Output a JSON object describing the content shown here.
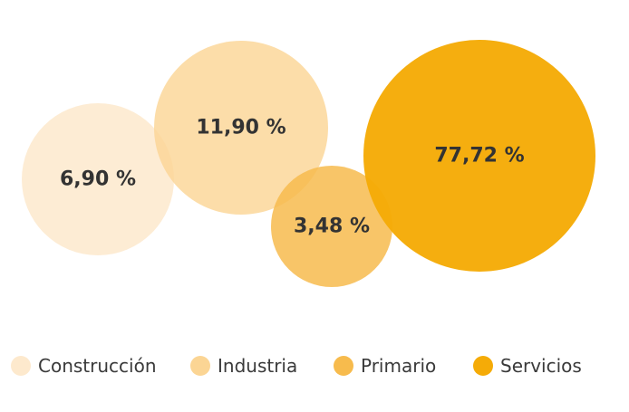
{
  "chart_data": {
    "type": "bubble",
    "title": "",
    "legend_position": "bottom",
    "series": [
      {
        "name": "Construcción",
        "value": 6.9,
        "label": "6,90 %",
        "color": "#fde9cd"
      },
      {
        "name": "Industria",
        "value": 11.9,
        "label": "11,90 %",
        "color": "#fbd594"
      },
      {
        "name": "Primario",
        "value": 3.48,
        "label": "3,48 %",
        "color": "#f7bb4d"
      },
      {
        "name": "Servicios",
        "value": 77.72,
        "label": "77,72 %",
        "color": "#f5ab07"
      }
    ]
  },
  "legend": {
    "items": [
      {
        "label": "Construcción",
        "color": "#fde9cd"
      },
      {
        "label": "Industria",
        "color": "#fbd594"
      },
      {
        "label": "Primario",
        "color": "#f7bb4d"
      },
      {
        "label": "Servicios",
        "color": "#f5ab07"
      }
    ]
  }
}
